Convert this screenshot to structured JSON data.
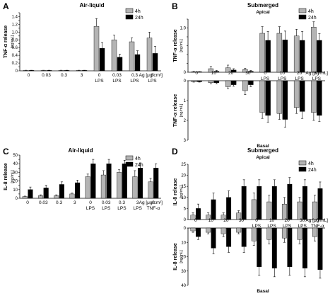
{
  "chart_data": [
    {
      "panel_letter": "A",
      "type": "bar",
      "title": "Air-liquid",
      "ylabel": "TNF-α release",
      "yunit": "[ng/mL]",
      "xunit": "Ag [μg/cm²]",
      "ylim": [
        0,
        1.5
      ],
      "yticks": [
        0,
        0.1,
        0.2,
        0.3,
        0.4,
        0.5,
        0.6,
        0.7,
        0.8,
        0.9,
        1.0,
        1.1,
        1.2,
        1.3,
        1.4,
        1.5
      ],
      "ytick_labels": [
        "0",
        "",
        "0.2",
        "",
        "0.4",
        "",
        "0.6",
        "",
        "0.8",
        "",
        "1.0",
        "",
        "1.2",
        "",
        "1.4",
        ""
      ],
      "legend_position": "top-right",
      "categories": [
        [
          "0"
        ],
        [
          "0.03"
        ],
        [
          "0.3"
        ],
        [
          "3"
        ],
        [
          "0",
          "LPS"
        ],
        [
          "0.03",
          "LPS"
        ],
        [
          "0.3",
          "LPS"
        ],
        [
          "3",
          "LPS"
        ]
      ],
      "series": [
        {
          "name": "4h",
          "color": "#b4b4b4",
          "values": [
            0.01,
            0.01,
            0.01,
            0.01,
            1.15,
            0.8,
            0.75,
            0.85
          ],
          "errors": [
            0.005,
            0.005,
            0.005,
            0.005,
            0.2,
            0.12,
            0.1,
            0.15
          ]
        },
        {
          "name": "24h",
          "color": "#000000",
          "values": [
            0.01,
            0.01,
            0.01,
            0.01,
            0.58,
            0.35,
            0.42,
            0.45
          ],
          "errors": [
            0.005,
            0.005,
            0.005,
            0.005,
            0.15,
            0.08,
            0.1,
            0.18
          ]
        }
      ]
    },
    {
      "panel_letter": "B",
      "type": "bar",
      "title": "Submerged",
      "top_label": "Apical",
      "bottom_label": "Basal",
      "ylabel_top": "TNF-α release",
      "ylabel_bottom": "TNF-α release",
      "yunit": "[ng/mL]",
      "xunit": "Ag [μg/mL]",
      "ylim_top": [
        0,
        1.2
      ],
      "yticks_top": [
        0,
        0.2,
        0.4,
        0.6,
        0.8,
        1.0,
        1.2
      ],
      "ytick_labels_top": [
        "0",
        "",
        "",
        "",
        "",
        "1.0",
        ""
      ],
      "ylim_bottom": [
        0,
        3
      ],
      "yticks_bottom": [
        0,
        1,
        2,
        3
      ],
      "ytick_labels_bottom": [
        "0",
        "1",
        "2",
        "3"
      ],
      "legend_position": "top-right",
      "categories": [
        [
          "0"
        ],
        [
          "10"
        ],
        [
          "20"
        ],
        [
          "30"
        ],
        [
          "0",
          "LPS"
        ],
        [
          "10",
          "LPS"
        ],
        [
          "20",
          "LPS"
        ],
        [
          "30",
          "LPS"
        ]
      ],
      "series": [
        {
          "name": "4h",
          "color": "#b4b4b4",
          "values_top": [
            0.01,
            0.08,
            0.1,
            0.06,
            0.88,
            0.88,
            0.82,
            1.02
          ],
          "errors_top": [
            0.01,
            0.05,
            0.06,
            0.03,
            0.15,
            0.15,
            0.15,
            0.12
          ],
          "values_bottom": [
            0.05,
            0.1,
            0.3,
            0.5,
            1.6,
            1.65,
            1.35,
            1.6
          ],
          "errors_bottom": [
            0.02,
            0.05,
            0.1,
            0.2,
            0.3,
            0.3,
            0.3,
            0.4
          ]
        },
        {
          "name": "24h",
          "color": "#000000",
          "values_top": [
            0.01,
            0.02,
            0.05,
            0.02,
            0.72,
            0.73,
            0.72,
            0.72
          ],
          "errors_top": [
            0.005,
            0.02,
            0.03,
            0.02,
            0.2,
            0.2,
            0.2,
            0.15
          ],
          "values_bottom": [
            0.05,
            0.1,
            0.2,
            0.2,
            1.75,
            1.95,
            1.55,
            1.75
          ],
          "errors_bottom": [
            0.02,
            0.05,
            0.08,
            0.1,
            0.35,
            0.4,
            0.35,
            0.3
          ]
        }
      ]
    },
    {
      "panel_letter": "C",
      "type": "bar",
      "title": "Air-liquid",
      "ylabel": "IL-8 release",
      "yunit": "[ng/mL]",
      "xunit": "Ag [μg/cm²]",
      "ylim": [
        0,
        50
      ],
      "yticks": [
        0,
        5,
        10,
        15,
        20,
        25,
        30,
        35,
        40,
        45,
        50
      ],
      "ytick_labels": [
        "0",
        "",
        "10",
        "",
        "20",
        "",
        "30",
        "",
        "40",
        "",
        "50"
      ],
      "legend_position": "top-right",
      "categories": [
        [
          "0"
        ],
        [
          "0.03"
        ],
        [
          "0.3"
        ],
        [
          "3"
        ],
        [
          "0",
          "LPS"
        ],
        [
          "0.03",
          "LPS"
        ],
        [
          "0.3",
          "LPS"
        ],
        [
          "3",
          "LPS"
        ],
        [
          "0",
          "TNF-α"
        ]
      ],
      "series": [
        {
          "name": "4h",
          "color": "#b4b4b4",
          "values": [
            2,
            3,
            3,
            5,
            25,
            27,
            30,
            25,
            19
          ],
          "errors": [
            0.5,
            1,
            1,
            1,
            3,
            5,
            3,
            7,
            4
          ]
        },
        {
          "name": "24h",
          "color": "#000000",
          "values": [
            10,
            12,
            16,
            18,
            40,
            40,
            40,
            35,
            35
          ],
          "errors": [
            3,
            3,
            3,
            3,
            5,
            5,
            4,
            6,
            5
          ]
        }
      ]
    },
    {
      "panel_letter": "D",
      "type": "bar",
      "title": "Submerged",
      "top_label": "Apical",
      "bottom_label": "Basal",
      "ylabel_top": "IL-8 release",
      "ylabel_bottom": "IL-8 release",
      "yunit": "[ng/mL]",
      "xunit": "Ag [μg/mL]",
      "ylim_top": [
        0,
        25
      ],
      "yticks_top": [
        0,
        5,
        10,
        15,
        20,
        25
      ],
      "ytick_labels_top": [
        "0",
        "5",
        "10",
        "15",
        "20",
        "25"
      ],
      "ylim_bottom": [
        0,
        40
      ],
      "yticks_bottom": [
        0,
        10,
        20,
        30,
        40
      ],
      "ytick_labels_bottom": [
        "0",
        "10",
        "20",
        "30",
        "40"
      ],
      "legend_position": "top-right",
      "categories": [
        [
          "0"
        ],
        [
          "10"
        ],
        [
          "20"
        ],
        [
          "30"
        ],
        [
          "0",
          "LPS"
        ],
        [
          "10",
          "LPS"
        ],
        [
          "20",
          "LPS"
        ],
        [
          "30",
          "LPS"
        ],
        [
          "0",
          "TNF-α"
        ]
      ],
      "series": [
        {
          "name": "4h",
          "color": "#b4b4b4",
          "values_top": [
            2,
            2,
            2,
            3,
            9,
            8,
            7,
            8,
            8
          ],
          "errors_top": [
            1,
            1,
            1,
            1,
            3,
            3,
            3,
            2,
            3
          ],
          "values_bottom": [
            2,
            3,
            4,
            3,
            9,
            8,
            7,
            8,
            6
          ],
          "errors_bottom": [
            1,
            1,
            2,
            1,
            3,
            3,
            3,
            3,
            3
          ]
        },
        {
          "name": "24h",
          "color": "#000000",
          "values_top": [
            5,
            9,
            10,
            15,
            15,
            15,
            16,
            15,
            14
          ],
          "errors_top": [
            2,
            3,
            3,
            3,
            3,
            3,
            3,
            3,
            3
          ],
          "values_bottom": [
            6,
            14,
            13,
            13,
            27,
            28,
            27,
            28,
            29
          ],
          "errors_bottom": [
            2,
            4,
            4,
            4,
            6,
            6,
            6,
            6,
            6
          ]
        }
      ]
    }
  ]
}
